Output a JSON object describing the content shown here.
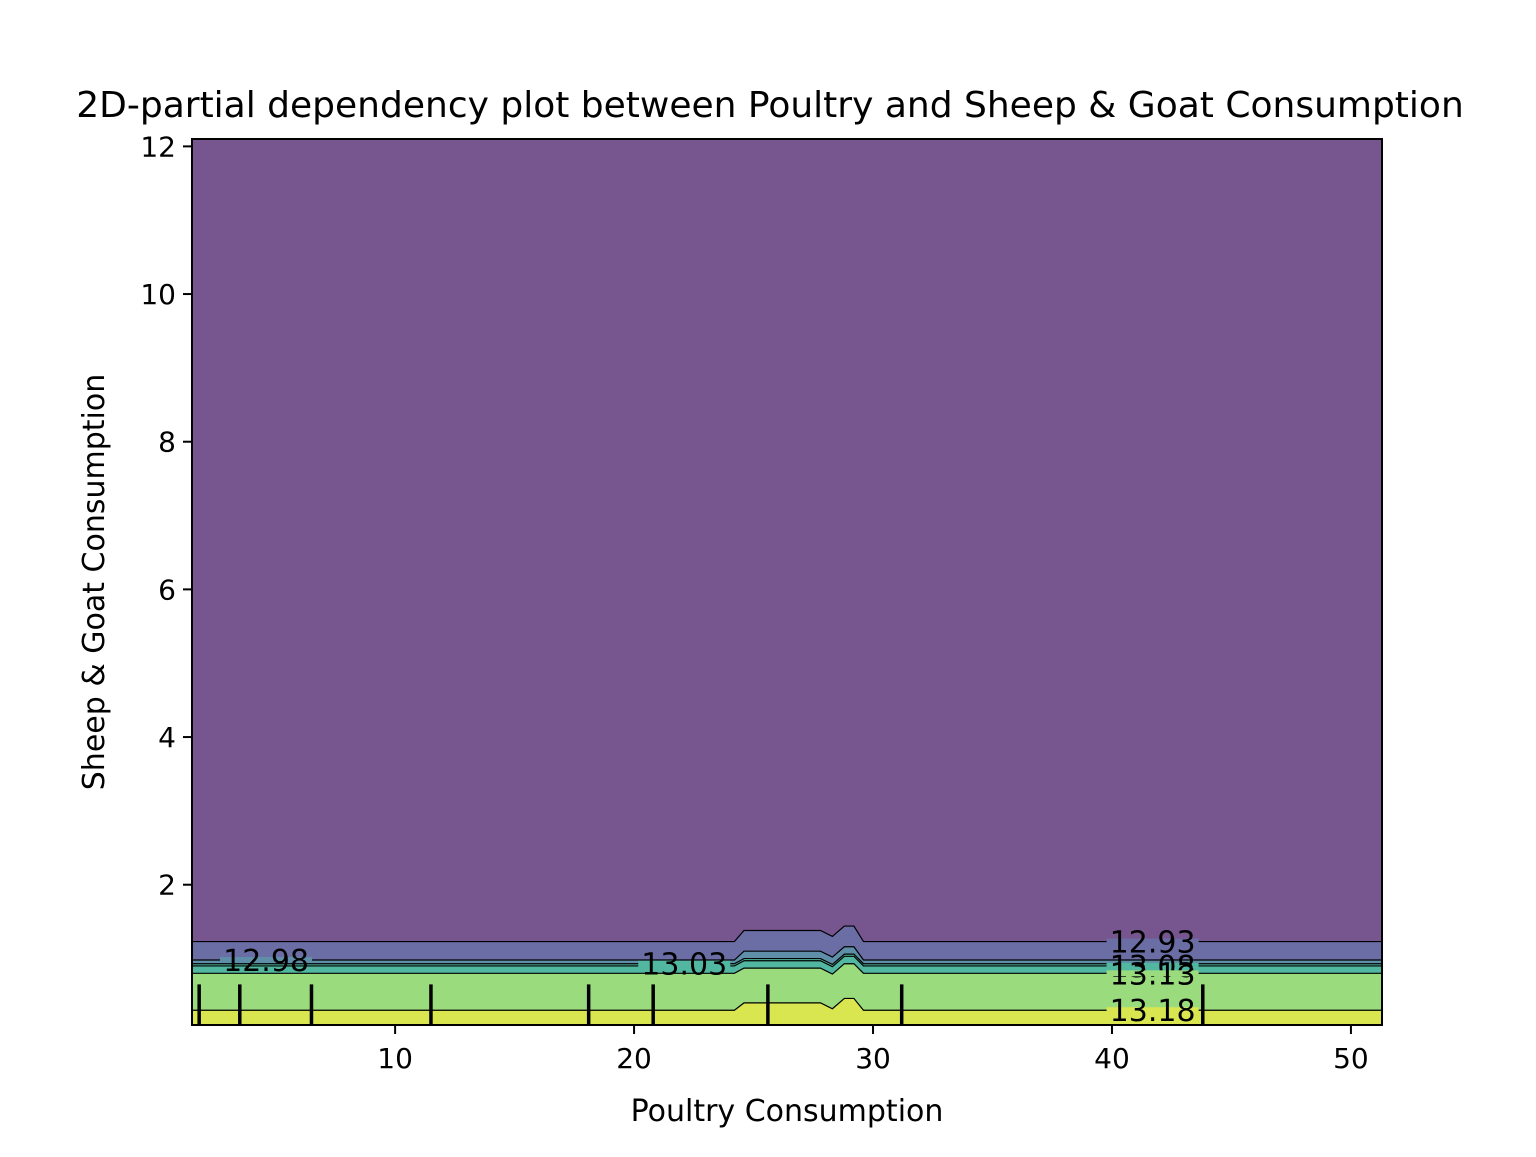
{
  "chart_data": {
    "type": "contour",
    "title": "2D-partial dependency plot between Poultry and Sheep & Goat Consumption",
    "xlabel": "Poultry Consumption",
    "ylabel": "Sheep & Goat Consumption",
    "xlim": [
      1.5,
      51.3
    ],
    "ylim": [
      0.1,
      12.1
    ],
    "xticks": [
      10,
      20,
      30,
      40,
      50
    ],
    "yticks": [
      2,
      4,
      6,
      8,
      10,
      12
    ],
    "grid": false,
    "colors": {
      "band_top": "#77558f",
      "band_2": "#6a6ea5",
      "band_3": "#5f8fa8",
      "band_4": "#52b7a0",
      "band_5": "#99db7d",
      "band_bottom": "#d9e650",
      "contour_line": "#000000"
    },
    "contour_levels": [
      {
        "value": 12.93,
        "label": "12.93",
        "y": 1.23,
        "bump_y": 1.38
      },
      {
        "value": 12.98,
        "label": "12.98",
        "y": 0.98,
        "bump_y": 1.1
      },
      {
        "value": 13.03,
        "label": "13.03",
        "y": 0.93,
        "bump_y": 1.0
      },
      {
        "value": 13.08,
        "label": "13.08",
        "y": 0.9,
        "bump_y": 0.97
      },
      {
        "value": 13.13,
        "label": "13.13",
        "y": 0.8,
        "bump_y": 0.87
      },
      {
        "value": 13.18,
        "label": "13.18",
        "y": 0.3,
        "bump_y": 0.4
      }
    ],
    "rug_x": [
      1.8,
      3.5,
      6.5,
      11.5,
      18.1,
      20.8,
      25.6,
      31.2,
      43.8
    ],
    "rug_top_y": 0.65
  }
}
